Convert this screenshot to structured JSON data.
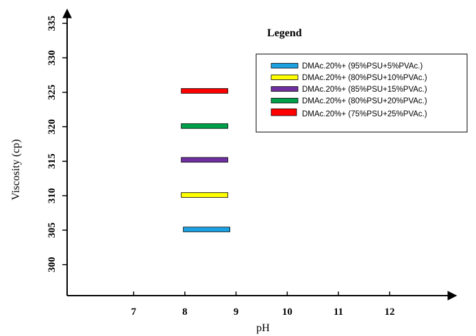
{
  "chart_data": {
    "type": "bar",
    "xlabel": "pH",
    "ylabel": "Viscosity (cp)",
    "x_ticks": [
      "7",
      "8",
      "9",
      "10",
      "11",
      "12"
    ],
    "y_ticks": [
      "300",
      "305",
      "310",
      "315",
      "320",
      "325",
      "330",
      "335"
    ],
    "xlim": [
      5.7,
      13.3
    ],
    "ylim": [
      295.5,
      337
    ],
    "legend": {
      "title": "Legend",
      "placement": "top-right"
    },
    "series": [
      {
        "name": "DMAc.20%+ (95%PSU+5%PVAc.)",
        "color": "#1ba1e2",
        "x_start": 7.97,
        "x_end": 8.88,
        "y": 305.1
      },
      {
        "name": "DMAc.20%+ (80%PSU+10%PVAc.)",
        "color": "#ffff00",
        "x_start": 7.93,
        "x_end": 8.84,
        "y": 310.1
      },
      {
        "name": "DMAc.20%+ (85%PSU+15%PVAc.)",
        "color": "#7030a0",
        "x_start": 7.93,
        "x_end": 8.84,
        "y": 315.2
      },
      {
        "name": "DMAc.20%+ (80%PSU+20%PVAc.)",
        "color": "#00a04a",
        "x_start": 7.93,
        "x_end": 8.84,
        "y": 320.1
      },
      {
        "name": "DMAc.20%+ (75%PSU+25%PVAc.)",
        "color": "#ff0000",
        "x_start": 7.93,
        "x_end": 8.84,
        "y": 325.2
      }
    ]
  }
}
